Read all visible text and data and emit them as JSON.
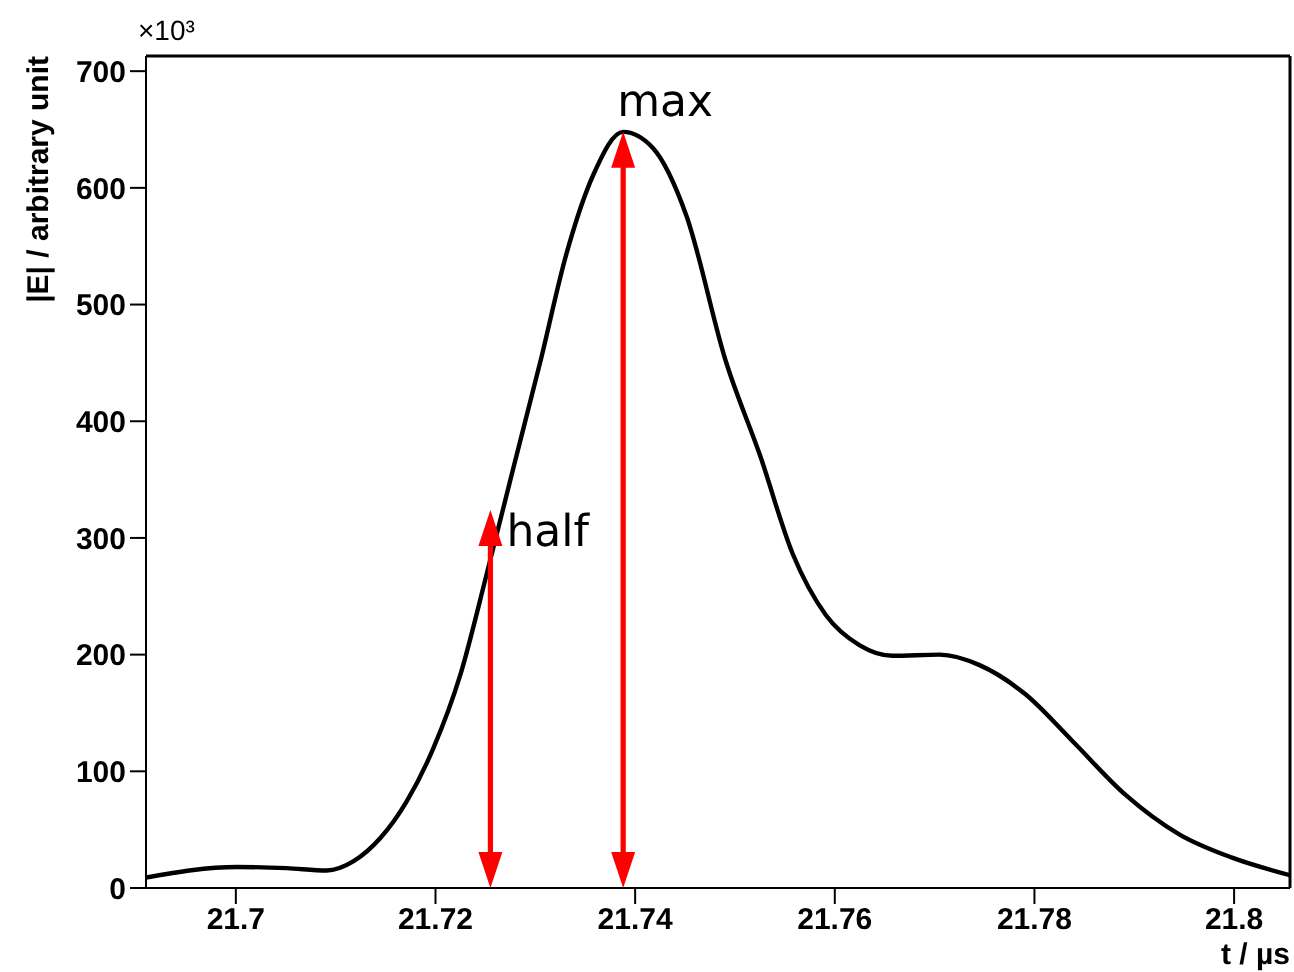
{
  "chart_data": {
    "type": "line",
    "xlabel": "t / µs",
    "ylabel": "|E| / arbitrary unit",
    "x": [
      21.691,
      21.7001,
      21.7051,
      21.7091,
      21.7118,
      21.7145,
      21.7171,
      21.7198,
      21.7225,
      21.7251,
      21.7278,
      21.7305,
      21.7331,
      21.7358,
      21.7388,
      21.7418,
      21.7451,
      21.7491,
      21.7525,
      21.7558,
      21.7591,
      21.7625,
      21.7658,
      21.7705,
      21.7745,
      21.7791,
      21.7838,
      21.7891,
      21.7945,
      21.7998,
      21.8056
    ],
    "series": [
      {
        "color": "#000000",
        "values": [
          9,
          18,
          17,
          15,
          23,
          43,
          74,
          120,
          183,
          268,
          360,
          451,
          543,
          611,
          648,
          634,
          577,
          451,
          371,
          286,
          234,
          208,
          199,
          200,
          191,
          166,
          126,
          80,
          46,
          26,
          11
        ]
      }
    ],
    "xlim": [
      21.691,
      21.8056
    ],
    "xticks": [
      21.7,
      21.72,
      21.74,
      21.76,
      21.78,
      21.8
    ],
    "ylim": [
      0,
      713
    ],
    "yticks": [
      0,
      100,
      200,
      300,
      400,
      500,
      600,
      700
    ],
    "grid": false,
    "annotations": [
      "×10³",
      {
        "text": "max",
        "x": 21.7388,
        "y": 648
      },
      {
        "text": "half",
        "x": 21.7255,
        "y": 324
      }
    ]
  }
}
